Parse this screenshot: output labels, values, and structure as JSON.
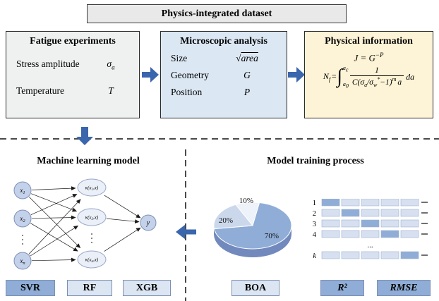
{
  "header": {
    "title": "Physics-integrated dataset"
  },
  "fatigue": {
    "title": "Fatigue experiments",
    "rows": [
      {
        "label": "Stress amplitude",
        "sym_base": "σ",
        "sym_sub": "a"
      },
      {
        "label": "Temperature",
        "sym_base": "T",
        "sym_sub": ""
      }
    ]
  },
  "microscopic": {
    "title": "Microscopic analysis",
    "rows": [
      {
        "label": "Size",
        "sym_prefix": "√",
        "sym_base": "area"
      },
      {
        "label": "Geometry",
        "sym_base": "G"
      },
      {
        "label": "Position",
        "sym_base": "P"
      }
    ]
  },
  "physical": {
    "title": "Physical information",
    "eq1": {
      "body": "J = G",
      "sup": "−P"
    },
    "eq2": {
      "lhs_base": "N",
      "lhs_sub": "f",
      "equals": "=",
      "integral": "∫",
      "upper": "a",
      "upper_sub": "c",
      "lower": "a",
      "lower_sub": "0",
      "numerator": "1",
      "den_1": "C(σ",
      "den_1_sub": "a",
      "den_2": "/σ",
      "den_2_sub": "w",
      "den_2_sup": "*",
      "den_3": "−1)",
      "den_3_sup": "m",
      "den_4": "a",
      "trailer": "da"
    }
  },
  "ml": {
    "title": "Machine learning model",
    "inputs": [
      {
        "base": "x",
        "sub": "1"
      },
      {
        "base": "x",
        "sub": "2"
      },
      {
        "base": "x",
        "sub": "n"
      }
    ],
    "hidden": [
      {
        "pre": "κ(x",
        "sub": "1",
        "post": ",x)"
      },
      {
        "pre": "κ(x",
        "sub": "2",
        "post": ",x)"
      },
      {
        "pre": "κ(x",
        "sub": "n",
        "post": ",x)"
      }
    ],
    "output": "y",
    "buttons": [
      "SVR",
      "RF",
      "XGB"
    ]
  },
  "training": {
    "title": "Model training process",
    "buttons": [
      "BOA",
      "R²",
      "RMSE"
    ]
  },
  "chart_data": [
    {
      "type": "pie",
      "labels": [
        "70%",
        "20%",
        "10%"
      ],
      "values": [
        70,
        20,
        10
      ],
      "colors": [
        "#8fadd6",
        "#cbd8ec",
        "#eef2f9"
      ],
      "depth_color": "#7189bd",
      "start_angle_deg": 116,
      "draw_order": [
        2,
        0,
        1
      ],
      "legend_position": "none"
    },
    {
      "type": "table",
      "rows": [
        "1",
        "2",
        "3",
        "4",
        "k"
      ],
      "ellipsis": "...",
      "folds_per_row": 5,
      "highlight_index": [
        0,
        1,
        2,
        3,
        4
      ],
      "light_color": "#d6e0f0",
      "dark_color": "#8fadd6"
    }
  ],
  "colors": {
    "arrow": "#3a66ad"
  }
}
